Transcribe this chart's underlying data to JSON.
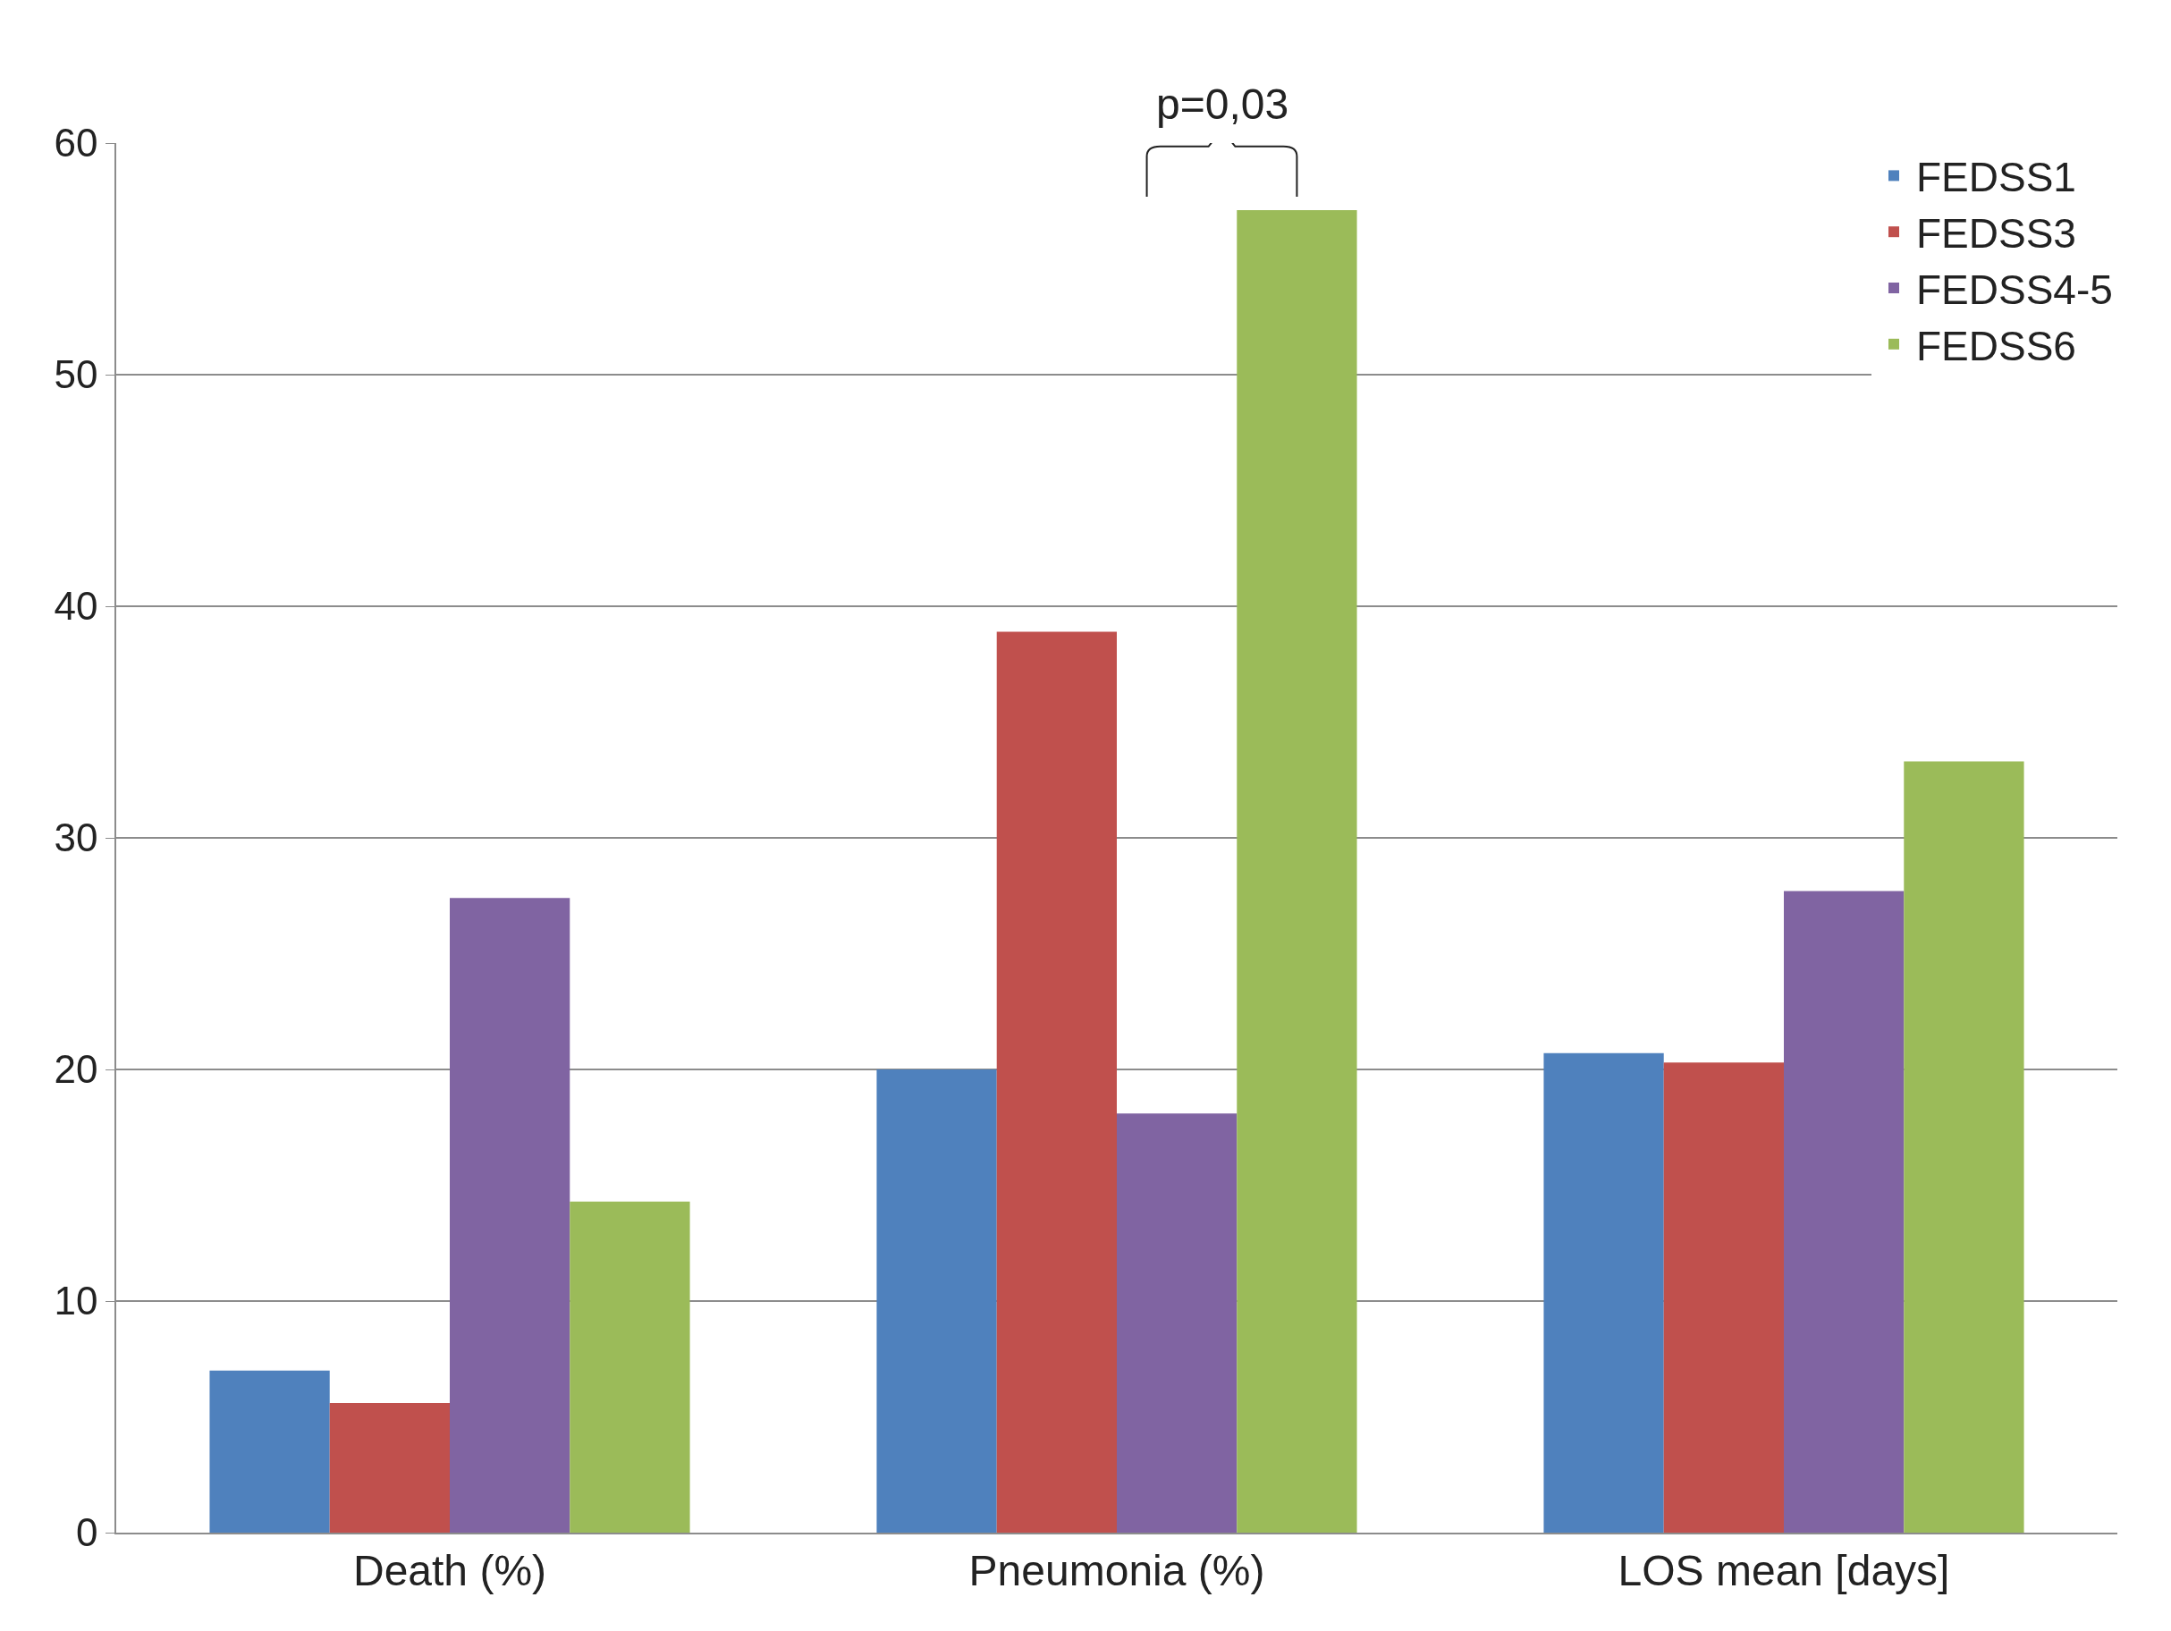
{
  "chart_data": {
    "type": "bar",
    "categories": [
      "Death (%)",
      "Pneumonia (%)",
      "LOS mean [days]"
    ],
    "series": [
      {
        "name": "FEDSS1",
        "color": "#4f81bd",
        "values": [
          7.0,
          20.0,
          20.7
        ]
      },
      {
        "name": "FEDSS3",
        "color": "#c0504d",
        "values": [
          5.6,
          38.9,
          20.3
        ]
      },
      {
        "name": "FEDSS4-5",
        "color": "#8064a2",
        "values": [
          27.4,
          18.1,
          27.7
        ]
      },
      {
        "name": "FEDSS6",
        "color": "#9bbb59",
        "values": [
          14.3,
          57.1,
          33.3
        ]
      }
    ],
    "ylim": [
      0,
      60
    ],
    "yticks": [
      0,
      10,
      20,
      30,
      40,
      50,
      60
    ],
    "grid": "y",
    "legend": "top right",
    "annotations": [
      "p=0,03"
    ]
  }
}
